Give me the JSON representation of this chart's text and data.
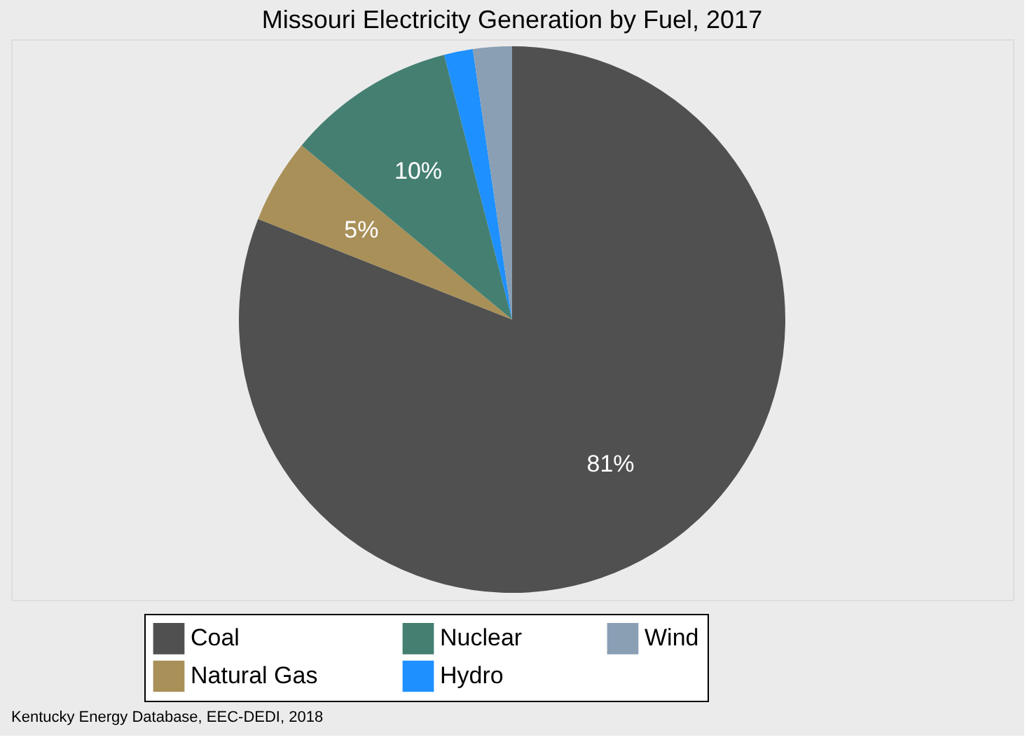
{
  "chart_data": {
    "type": "pie",
    "title": "Missouri Electricity Generation by Fuel, 2017",
    "categories": [
      "Coal",
      "Natural Gas",
      "Nuclear",
      "Hydro",
      "Wind"
    ],
    "values": [
      81,
      5,
      10,
      1.7,
      2.3
    ],
    "colors": [
      "#505050",
      "#a89058",
      "#447f72",
      "#1e90ff",
      "#8a9fb4"
    ],
    "value_labels": [
      "81%",
      "5%",
      "10%",
      null,
      null
    ],
    "legend": "bottom",
    "annotations": [
      "Kentucky Energy Database, EEC-DEDI, 2018"
    ]
  }
}
